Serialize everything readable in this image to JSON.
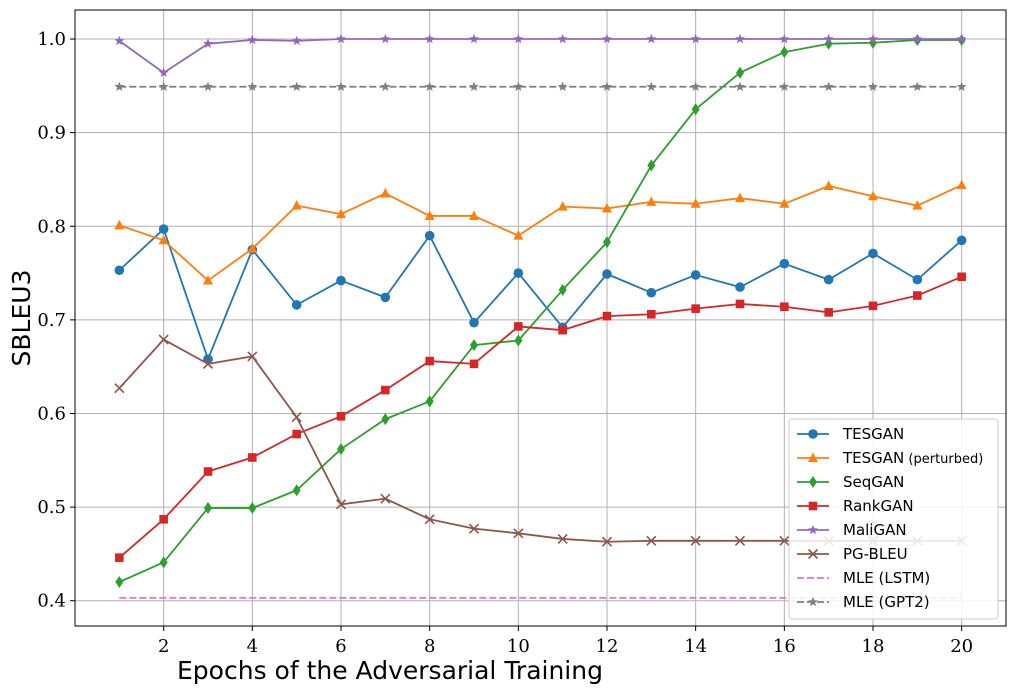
{
  "chart_data": {
    "type": "line",
    "title": "",
    "xlabel": "Epochs of the Adversarial Training",
    "ylabel": "SBLEU3",
    "xlim": [
      0,
      21
    ],
    "ylim": [
      0.373,
      1.031
    ],
    "xticks": [
      2,
      4,
      6,
      8,
      10,
      12,
      14,
      16,
      18,
      20
    ],
    "yticks": [
      0.4,
      0.5,
      0.6,
      0.7,
      0.8,
      0.9,
      1.0
    ],
    "xtick_labels": [
      "2",
      "4",
      "6",
      "8",
      "10",
      "12",
      "14",
      "16",
      "18",
      "20"
    ],
    "ytick_labels": [
      "0.4",
      "0.5",
      "0.6",
      "0.7",
      "0.8",
      "0.9",
      "1.0"
    ],
    "grid": true,
    "legend_position": "bottom-right",
    "x": [
      1,
      2,
      3,
      4,
      5,
      6,
      7,
      8,
      9,
      10,
      11,
      12,
      13,
      14,
      15,
      16,
      17,
      18,
      19,
      20
    ],
    "series": [
      {
        "name": "TESGAN",
        "color": "#1f77b4",
        "marker": "circle",
        "linestyle": "solid",
        "values": [
          0.753,
          0.797,
          0.658,
          0.775,
          0.716,
          0.742,
          0.724,
          0.79,
          0.697,
          0.75,
          0.692,
          0.749,
          0.729,
          0.748,
          0.735,
          0.76,
          0.743,
          0.771,
          0.743,
          0.785
        ]
      },
      {
        "name": "TESGAN",
        "name_suffix": "(perturbed)",
        "color": "#ff7f0e",
        "marker": "triangle",
        "linestyle": "solid",
        "values": [
          0.801,
          0.785,
          0.742,
          0.776,
          0.822,
          0.813,
          0.835,
          0.811,
          0.811,
          0.79,
          0.821,
          0.819,
          0.826,
          0.824,
          0.83,
          0.824,
          0.843,
          0.832,
          0.822,
          0.844
        ]
      },
      {
        "name": "SeqGAN",
        "color": "#2ca02c",
        "marker": "diamond",
        "linestyle": "solid",
        "values": [
          0.42,
          0.441,
          0.499,
          0.499,
          0.518,
          0.562,
          0.594,
          0.613,
          0.673,
          0.678,
          0.732,
          0.783,
          0.865,
          0.925,
          0.964,
          0.986,
          0.995,
          0.996,
          0.999,
          0.999
        ]
      },
      {
        "name": "RankGAN",
        "color": "#d62728",
        "marker": "square",
        "linestyle": "solid",
        "values": [
          0.446,
          0.487,
          0.538,
          0.553,
          0.578,
          0.597,
          0.625,
          0.656,
          0.653,
          0.693,
          0.689,
          0.704,
          0.706,
          0.712,
          0.717,
          0.714,
          0.708,
          0.715,
          0.726,
          0.746
        ]
      },
      {
        "name": "MaliGAN",
        "color": "#9467bd",
        "marker": "star",
        "linestyle": "solid",
        "values": [
          0.998,
          0.964,
          0.995,
          0.999,
          0.998,
          1.0,
          1.0,
          1.0,
          1.0,
          1.0,
          1.0,
          1.0,
          1.0,
          1.0,
          1.0,
          1.0,
          1.0,
          1.0,
          1.0,
          1.0
        ]
      },
      {
        "name": "PG-BLEU",
        "color": "#8c564b",
        "marker": "x",
        "linestyle": "solid",
        "values": [
          0.627,
          0.679,
          0.653,
          0.661,
          0.596,
          0.503,
          0.509,
          0.487,
          0.477,
          0.472,
          0.466,
          0.463,
          0.464,
          0.464,
          0.464,
          0.464,
          0.464,
          0.464,
          0.464,
          0.464
        ]
      },
      {
        "name": "MLE (LSTM)",
        "color": "#e377c2",
        "marker": "none",
        "linestyle": "dashed",
        "values": [
          0.403,
          0.403,
          0.403,
          0.403,
          0.403,
          0.403,
          0.403,
          0.403,
          0.403,
          0.403,
          0.403,
          0.403,
          0.403,
          0.403,
          0.403,
          0.403,
          0.403,
          0.403,
          0.403,
          0.403
        ]
      },
      {
        "name": "MLE (GPT2)",
        "color": "#7f7f7f",
        "marker": "star",
        "linestyle": "dashed",
        "values": [
          0.949,
          0.949,
          0.949,
          0.949,
          0.949,
          0.949,
          0.949,
          0.949,
          0.949,
          0.949,
          0.949,
          0.949,
          0.949,
          0.949,
          0.949,
          0.949,
          0.949,
          0.949,
          0.949,
          0.949
        ]
      }
    ]
  }
}
